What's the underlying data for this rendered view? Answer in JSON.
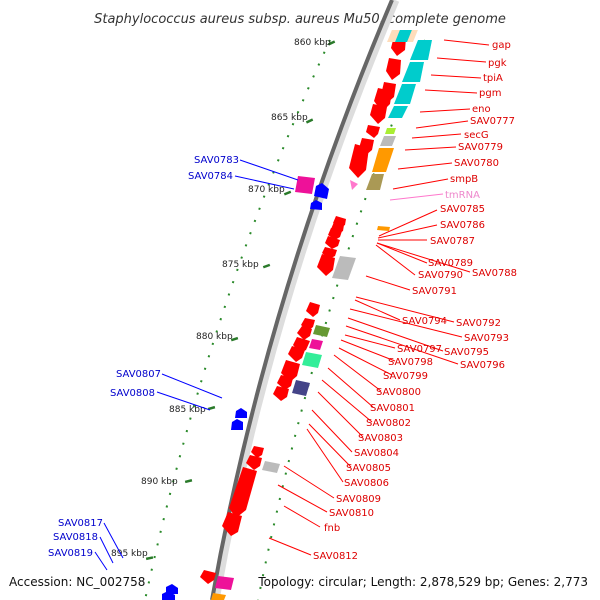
{
  "title": "Staphylococcus aureus subsp. aureus Mu50, complete genome",
  "footer": {
    "accession": "Accession: NC_002758",
    "summary": "Topology: circular; Length: 2,878,529 bp; Genes: 2,773"
  },
  "ticks": [
    "860 kbp",
    "865 kbp",
    "870 kbp",
    "875 kbp",
    "880 kbp",
    "885 kbp",
    "890 kbp",
    "895 kbp"
  ],
  "colors": {
    "forward_gene": "#ff0000",
    "reverse_gene": "#0000ff",
    "rna_gene": "#ff77cc",
    "backbone": "#777777",
    "cog_cyan": "#00cccc",
    "cog_peach": "#ffddbb",
    "cog_orange": "#ff9900",
    "cog_gray": "#bbbbbb",
    "cog_green": "#669933",
    "cog_pink": "#ee1199",
    "cog_mint": "#33ee99",
    "cog_navy": "#444488",
    "cog_lime": "#aaee33",
    "cog_olive": "#aa9955"
  },
  "left_labels": [
    "SAV0783",
    "SAV0784",
    "SAV0807",
    "SAV0808",
    "SAV0817",
    "SAV0818",
    "SAV0819"
  ],
  "right_labels": [
    "gap",
    "pgk",
    "tpiA",
    "pgm",
    "eno",
    "SAV0777",
    "secG",
    "SAV0779",
    "SAV0780",
    "smpB",
    "tmRNA",
    "SAV0785",
    "SAV0786",
    "SAV0787",
    "SAV0789",
    "SAV0788",
    "SAV0790",
    "SAV0791",
    "SAV0794",
    "SAV0792",
    "SAV0793",
    "SAV0797",
    "SAV0795",
    "SAV0798",
    "SAV0796",
    "SAV0799",
    "SAV0800",
    "SAV0801",
    "SAV0802",
    "SAV0803",
    "SAV0804",
    "SAV0805",
    "SAV0806",
    "SAV0809",
    "SAV0810",
    "fnb",
    "SAV0812"
  ]
}
